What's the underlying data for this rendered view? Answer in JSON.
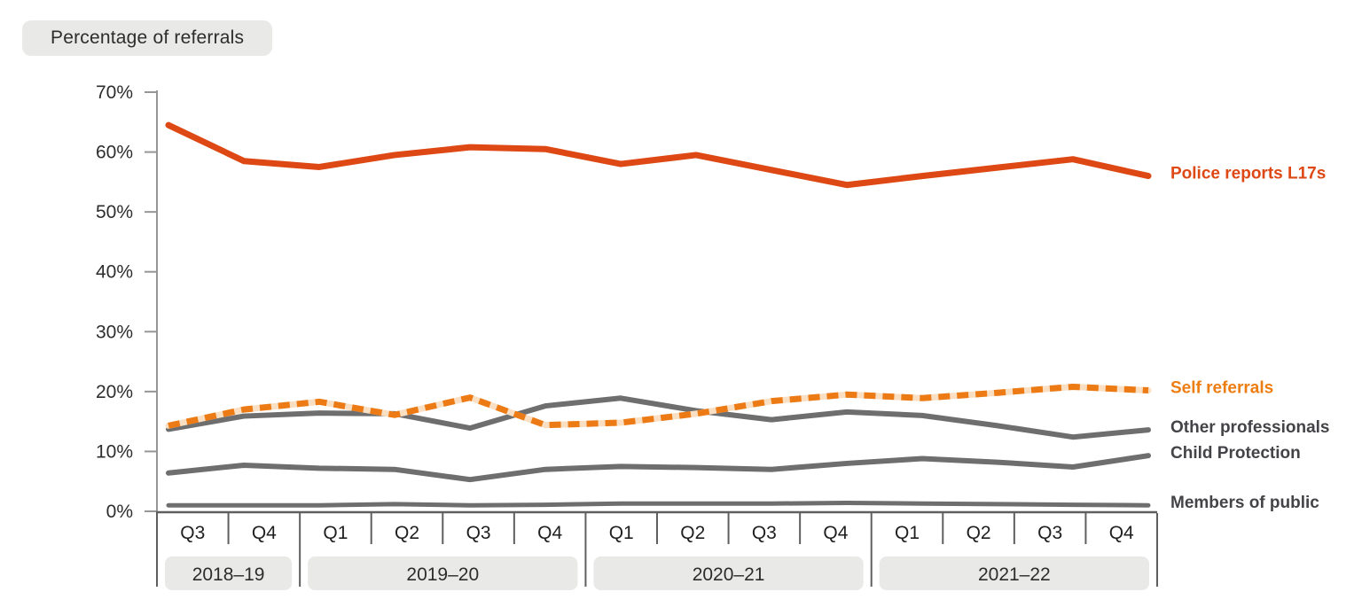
{
  "title": "Percentage of referrals",
  "chart_data": {
    "type": "line",
    "title": "Percentage of referrals",
    "ylabel": "Percentage of referrals",
    "ylim": [
      0,
      70
    ],
    "grid": false,
    "legend_position": "labels-at-line-ends-right",
    "y_ticks": [
      {
        "value": 0,
        "label": "0%"
      },
      {
        "value": 10,
        "label": "10%"
      },
      {
        "value": 20,
        "label": "20%"
      },
      {
        "value": 30,
        "label": "30%"
      },
      {
        "value": 40,
        "label": "40%"
      },
      {
        "value": 50,
        "label": "50%"
      },
      {
        "value": 60,
        "label": "60%"
      },
      {
        "value": 70,
        "label": "70%"
      }
    ],
    "x_groups": [
      {
        "label": "2018–19",
        "quarters": [
          "Q3",
          "Q4"
        ]
      },
      {
        "label": "2019–20",
        "quarters": [
          "Q1",
          "Q2",
          "Q3",
          "Q4"
        ]
      },
      {
        "label": "2020–21",
        "quarters": [
          "Q1",
          "Q2",
          "Q3",
          "Q4"
        ]
      },
      {
        "label": "2021–22",
        "quarters": [
          "Q1",
          "Q2",
          "Q3",
          "Q4"
        ]
      }
    ],
    "categories": [
      "2018–19 Q3",
      "2018–19 Q4",
      "2019–20 Q1",
      "2019–20 Q2",
      "2019–20 Q3",
      "2019–20 Q4",
      "2020–21 Q1",
      "2020–21 Q2",
      "2020–21 Q3",
      "2020–21 Q4",
      "2021–22 Q1",
      "2021–22 Q2",
      "2021–22 Q3",
      "2021–22 Q4"
    ],
    "series": [
      {
        "name": "Members of public",
        "style": "solid",
        "color": "#6e6e6e",
        "label_color": "#444448",
        "width": 5,
        "values": [
          1.0,
          1.0,
          1.0,
          1.2,
          1.0,
          1.1,
          1.3,
          1.3,
          1.3,
          1.4,
          1.3,
          1.2,
          1.1,
          1.0
        ]
      },
      {
        "name": "Child Protection",
        "style": "solid",
        "color": "#6e6e6e",
        "label_color": "#444448",
        "width": 6,
        "values": [
          6.4,
          7.7,
          7.2,
          7.0,
          5.3,
          7.0,
          7.5,
          7.3,
          7.0,
          8.0,
          8.8,
          8.2,
          7.4,
          9.3
        ]
      },
      {
        "name": "Other professionals",
        "style": "solid",
        "color": "#6e6e6e",
        "label_color": "#444448",
        "width": 6,
        "values": [
          13.7,
          15.9,
          16.4,
          16.3,
          13.9,
          17.6,
          18.9,
          16.8,
          15.3,
          16.6,
          16.0,
          14.3,
          12.4,
          13.6
        ]
      },
      {
        "name": "Self referrals",
        "style": "dashed",
        "color": "#ec7b16",
        "underlay_color": "#fadfc3",
        "label_color": "#ee7d11",
        "width": 7,
        "dash": "13 8",
        "values": [
          14.3,
          17.0,
          18.3,
          16.1,
          19.0,
          14.4,
          14.8,
          16.3,
          18.4,
          19.5,
          18.9,
          19.8,
          20.8,
          20.2
        ]
      },
      {
        "name": "Police reports L17s",
        "style": "solid",
        "color": "#dd4814",
        "label_color": "#dd4814",
        "width": 7,
        "values": [
          64.5,
          58.5,
          57.5,
          59.5,
          60.8,
          60.5,
          58.0,
          59.5,
          57.0,
          54.5,
          56.0,
          57.4,
          58.8,
          56.0
        ]
      }
    ],
    "colors": {
      "axis_light": "#969696",
      "axis_dark": "#5f5f5f",
      "tick_text": "#2d2d2d",
      "pill_fill": "#e9e9e7",
      "pill_text": "#2d2d2d"
    }
  }
}
